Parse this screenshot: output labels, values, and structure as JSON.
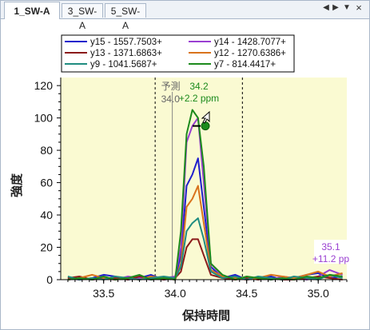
{
  "tabs": [
    {
      "label": "1_SW-A",
      "active": true
    },
    {
      "label": "3_SW-A",
      "active": false
    },
    {
      "label": "5_SW-A",
      "active": false
    }
  ],
  "tab_controls": [
    "scroll-left-icon",
    "scroll-right-icon",
    "dropdown-icon",
    "close-icon"
  ],
  "chart_data": {
    "type": "line",
    "xlabel": "保持時間",
    "ylabel": "強度",
    "xlim": [
      33.2,
      35.2
    ],
    "ylim": [
      0,
      125
    ],
    "x_ticks": [
      "33.5",
      "34.0",
      "34.5",
      "35.0"
    ],
    "y_ticks": [
      "0",
      "20",
      "40",
      "60",
      "80",
      "100",
      "120"
    ],
    "background": "#fafad2",
    "legend": {
      "placement": "top",
      "entries": [
        {
          "label": "y15 - 1557.7503+",
          "color": "#1f1fcc"
        },
        {
          "label": "y14 - 1428.7077+",
          "color": "#9a3fd1"
        },
        {
          "label": "y13 - 1371.6863+",
          "color": "#8b1a1a"
        },
        {
          "label": "y12 - 1270.6386+",
          "color": "#d9731c"
        },
        {
          "label": "y9 - 1041.5687+",
          "color": "#1f8c80"
        },
        {
          "label": "y7 - 814.4417+",
          "color": "#1c8a1c"
        }
      ]
    },
    "integration_bounds": [
      33.86,
      34.47
    ],
    "predicted_rt_line": 33.98,
    "predicted_label": [
      "予測",
      "34.0"
    ],
    "peak_annotation": {
      "x": 34.2,
      "y": 99,
      "label": "34.2",
      "ppm": "+2.2 ppm",
      "color": "#1c8a1c"
    },
    "right_annotation": {
      "label": "35.1",
      "ppm": "+11.2 pp",
      "color": "#9a3fd1"
    },
    "x": [
      33.25,
      33.33,
      33.42,
      33.5,
      33.58,
      33.67,
      33.75,
      33.83,
      33.92,
      34.0,
      34.04,
      34.08,
      34.12,
      34.16,
      34.2,
      34.25,
      34.33,
      34.42,
      34.5,
      34.58,
      34.67,
      34.75,
      34.83,
      34.92,
      35.0,
      35.08,
      35.17
    ],
    "series": [
      {
        "name": "y15 - 1557.7503+",
        "color": "#1f1fcc",
        "values": [
          1,
          0,
          1,
          3,
          2,
          0,
          1,
          3,
          0,
          1,
          15,
          58,
          65,
          75,
          45,
          8,
          1,
          3,
          0,
          1,
          2,
          0,
          1,
          3,
          4,
          1,
          2
        ]
      },
      {
        "name": "y14 - 1428.7077+",
        "color": "#9a3fd1",
        "values": [
          0,
          1,
          0,
          1,
          0,
          2,
          1,
          0,
          1,
          2,
          20,
          85,
          95,
          100,
          60,
          10,
          2,
          1,
          0,
          1,
          0,
          2,
          1,
          0,
          2,
          6,
          3
        ]
      },
      {
        "name": "y13 - 1371.6863+",
        "color": "#8b1a1a",
        "values": [
          1,
          2,
          0,
          1,
          1,
          0,
          2,
          1,
          0,
          1,
          5,
          20,
          25,
          25,
          15,
          3,
          1,
          0,
          1,
          0,
          1,
          0,
          0,
          1,
          2,
          1,
          0
        ]
      },
      {
        "name": "y12 - 1270.6386+",
        "color": "#d9731c",
        "values": [
          0,
          1,
          3,
          1,
          0,
          1,
          0,
          2,
          1,
          0,
          10,
          45,
          50,
          58,
          35,
          6,
          2,
          1,
          0,
          1,
          3,
          2,
          1,
          3,
          5,
          2,
          4
        ]
      },
      {
        "name": "y9 - 1041.5687+",
        "color": "#1f8c80",
        "values": [
          2,
          0,
          1,
          0,
          2,
          1,
          0,
          1,
          2,
          1,
          8,
          30,
          35,
          38,
          25,
          5,
          1,
          2,
          0,
          2,
          1,
          0,
          2,
          1,
          0,
          3,
          1
        ]
      },
      {
        "name": "y7 - 814.4417+",
        "color": "#1c8a1c",
        "values": [
          0,
          1,
          0,
          2,
          0,
          1,
          3,
          0,
          1,
          0,
          30,
          90,
          105,
          100,
          70,
          10,
          3,
          0,
          2,
          1,
          0,
          1,
          0,
          2,
          1,
          3,
          2
        ]
      }
    ]
  }
}
